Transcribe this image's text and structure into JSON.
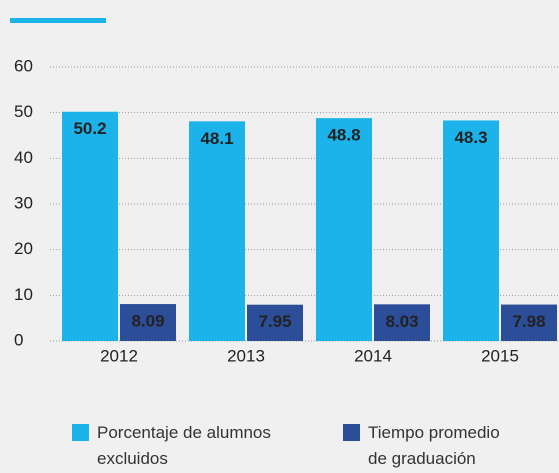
{
  "chart_data": {
    "type": "bar",
    "categories": [
      "2012",
      "2013",
      "2014",
      "2015"
    ],
    "series": [
      {
        "name": "Porcentaje de alumnos excluidos",
        "color": "#1cb3ea",
        "values": [
          50.2,
          48.1,
          48.8,
          48.3
        ]
      },
      {
        "name": "Tiempo promedio de graduación",
        "color": "#2c4d98",
        "values": [
          8.09,
          7.95,
          8.03,
          7.98
        ]
      }
    ],
    "ylim": [
      0,
      60
    ],
    "yticks": [
      0,
      10,
      20,
      30,
      40,
      50,
      60
    ],
    "grid": true,
    "legend": "bottom"
  }
}
